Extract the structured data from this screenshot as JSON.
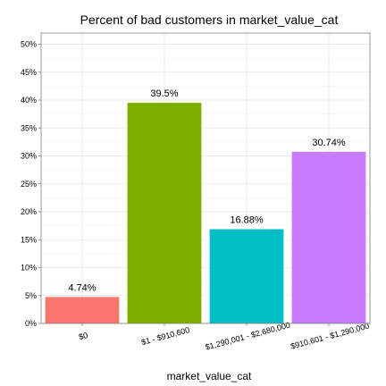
{
  "chart_data": {
    "type": "bar",
    "title": "Percent of bad customers in market_value_cat",
    "xlabel": "market_value_cat",
    "ylabel": "",
    "categories": [
      "$0",
      "$1 - $910,600",
      "$1,290,001 - $2,680,000",
      "$910,601 - $1,290,000"
    ],
    "values": [
      4.74,
      39.5,
      16.88,
      30.74
    ],
    "data_labels": [
      "4.74%",
      "39.5%",
      "16.88%",
      "30.74%"
    ],
    "colors": [
      "#F8766D",
      "#7CAE00",
      "#00BFC4",
      "#C77CFF"
    ],
    "ylim": [
      0,
      52
    ],
    "yticks": [
      0,
      5,
      10,
      15,
      20,
      25,
      30,
      35,
      40,
      45,
      50
    ],
    "ytick_labels": [
      "0%",
      "5%",
      "10%",
      "15%",
      "20%",
      "25%",
      "30%",
      "35%",
      "40%",
      "45%",
      "50%"
    ],
    "grid": true,
    "legend": "none"
  }
}
